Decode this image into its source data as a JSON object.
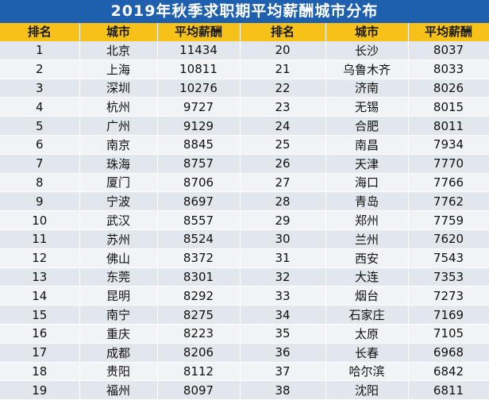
{
  "title": "2019年秋季求职期平均薪酬城市分布",
  "headers": {
    "rank": "排名",
    "city": "城市",
    "salary": "平均薪酬"
  },
  "left": [
    {
      "rank": "1",
      "city": "北京",
      "salary": "11434"
    },
    {
      "rank": "2",
      "city": "上海",
      "salary": "10811"
    },
    {
      "rank": "3",
      "city": "深圳",
      "salary": "10276"
    },
    {
      "rank": "4",
      "city": "杭州",
      "salary": "9727"
    },
    {
      "rank": "5",
      "city": "广州",
      "salary": "9129"
    },
    {
      "rank": "6",
      "city": "南京",
      "salary": "8845"
    },
    {
      "rank": "7",
      "city": "珠海",
      "salary": "8757"
    },
    {
      "rank": "8",
      "city": "厦门",
      "salary": "8706"
    },
    {
      "rank": "9",
      "city": "宁波",
      "salary": "8697"
    },
    {
      "rank": "10",
      "city": "武汉",
      "salary": "8557"
    },
    {
      "rank": "11",
      "city": "苏州",
      "salary": "8524"
    },
    {
      "rank": "12",
      "city": "佛山",
      "salary": "8372"
    },
    {
      "rank": "13",
      "city": "东莞",
      "salary": "8301"
    },
    {
      "rank": "14",
      "city": "昆明",
      "salary": "8292"
    },
    {
      "rank": "15",
      "city": "南宁",
      "salary": "8275"
    },
    {
      "rank": "16",
      "city": "重庆",
      "salary": "8223"
    },
    {
      "rank": "17",
      "city": "成都",
      "salary": "8206"
    },
    {
      "rank": "18",
      "city": "贵阳",
      "salary": "8112"
    },
    {
      "rank": "19",
      "city": "福州",
      "salary": "8097"
    }
  ],
  "right": [
    {
      "rank": "20",
      "city": "长沙",
      "salary": "8037"
    },
    {
      "rank": "21",
      "city": "乌鲁木齐",
      "salary": "8033"
    },
    {
      "rank": "22",
      "city": "济南",
      "salary": "8026"
    },
    {
      "rank": "23",
      "city": "无锡",
      "salary": "8015"
    },
    {
      "rank": "24",
      "city": "合肥",
      "salary": "8011"
    },
    {
      "rank": "25",
      "city": "南昌",
      "salary": "7934"
    },
    {
      "rank": "26",
      "city": "天津",
      "salary": "7770"
    },
    {
      "rank": "27",
      "city": "海口",
      "salary": "7766"
    },
    {
      "rank": "28",
      "city": "青岛",
      "salary": "7762"
    },
    {
      "rank": "29",
      "city": "郑州",
      "salary": "7759"
    },
    {
      "rank": "30",
      "city": "兰州",
      "salary": "7620"
    },
    {
      "rank": "31",
      "city": "西安",
      "salary": "7543"
    },
    {
      "rank": "32",
      "city": "大连",
      "salary": "7353"
    },
    {
      "rank": "33",
      "city": "烟台",
      "salary": "7273"
    },
    {
      "rank": "34",
      "city": "石家庄",
      "salary": "7169"
    },
    {
      "rank": "35",
      "city": "太原",
      "salary": "7105"
    },
    {
      "rank": "36",
      "city": "长春",
      "salary": "6968"
    },
    {
      "rank": "37",
      "city": "哈尔滨",
      "salary": "6842"
    },
    {
      "rank": "38",
      "city": "沈阳",
      "salary": "6811"
    }
  ]
}
